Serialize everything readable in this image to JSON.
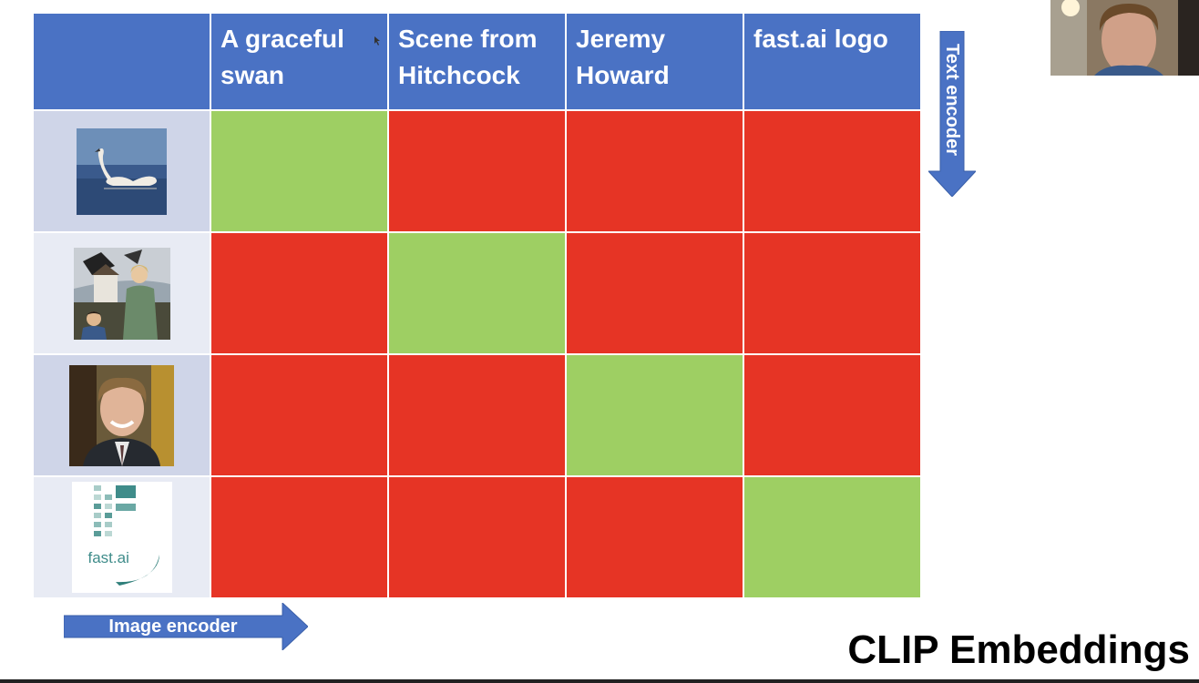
{
  "columns": [
    "A graceful swan",
    "Scene from Hitchcock",
    "Jeremy Howard",
    "fast.ai logo"
  ],
  "rows": [
    {
      "image": "swan-photo",
      "matches": [
        true,
        false,
        false,
        false
      ]
    },
    {
      "image": "hitchcock-scene-photo",
      "matches": [
        false,
        true,
        false,
        false
      ]
    },
    {
      "image": "jeremy-howard-photo",
      "matches": [
        false,
        false,
        true,
        false
      ]
    },
    {
      "image": "fastai-logo",
      "matches": [
        false,
        false,
        false,
        true
      ]
    }
  ],
  "logo_text": "fast.ai",
  "image_encoder_label": "Image encoder",
  "text_encoder_label": "Text encoder",
  "title": "CLIP Embeddings",
  "colors": {
    "header": "#4a72c4",
    "match": "#9ecf63",
    "no_match": "#e63425",
    "arrow": "#4a72c4"
  }
}
